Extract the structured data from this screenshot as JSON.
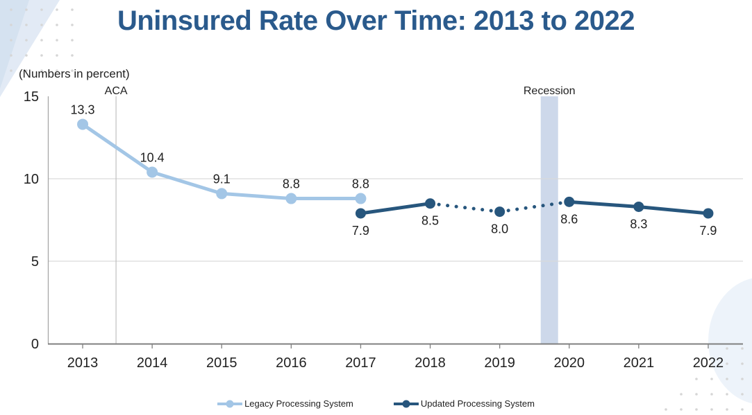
{
  "chart_data": {
    "type": "line",
    "title": "Uninsured Rate Over Time: 2013 to 2022",
    "units_note": "(Numbers in percent)",
    "categories": [
      "2013",
      "2014",
      "2015",
      "2016",
      "2017",
      "2018",
      "2019",
      "2020",
      "2021",
      "2022"
    ],
    "ylim": [
      0,
      15
    ],
    "yticks": [
      0,
      5,
      10,
      15
    ],
    "ytick_labels": [
      "0",
      "5",
      "10",
      "15"
    ],
    "grid_yticks": [
      5,
      10
    ],
    "legend_position": "bottom-center",
    "series": [
      {
        "key": "legacy",
        "name": "Legacy Processing System",
        "color": "#A3C6E6",
        "marker_radius": 8,
        "label_position": "above",
        "x": [
          2013,
          2014,
          2015,
          2016,
          2017
        ],
        "values": [
          13.3,
          10.4,
          9.1,
          8.8,
          8.8
        ],
        "labels": [
          "13.3",
          "10.4",
          "9.1",
          "8.8",
          "8.8"
        ],
        "segments": [
          {
            "style": "solid",
            "x": [
              2013,
              2014,
              2015,
              2016,
              2017
            ]
          }
        ]
      },
      {
        "key": "updated",
        "name": "Updated Processing System",
        "color": "#27567D",
        "marker_radius": 7.5,
        "label_position": "below",
        "x": [
          2017,
          2018,
          2019,
          2020,
          2021,
          2022
        ],
        "values": [
          7.9,
          8.5,
          8.0,
          8.6,
          8.3,
          7.9
        ],
        "labels": [
          "7.9",
          "8.5",
          "8.0",
          "8.6",
          "8.3",
          "7.9"
        ],
        "segments": [
          {
            "style": "solid",
            "x": [
              2017,
              2018
            ]
          },
          {
            "style": "dotted",
            "x": [
              2018,
              2019,
              2020
            ]
          },
          {
            "style": "solid",
            "x": [
              2020,
              2021,
              2022
            ]
          }
        ]
      }
    ],
    "annotations": {
      "aca": {
        "type": "vline",
        "label": "ACA",
        "x": 2013.48
      },
      "recession": {
        "type": "vband",
        "label": "Recession",
        "x_start": 2019.59,
        "x_end": 2019.84
      }
    }
  },
  "colors": {
    "title": "#2A5A8C",
    "grid": "#D9D9D9",
    "axis": "#7F7F7F",
    "y_axis_line": "#A6A6A6",
    "annotation_line": "#BFBFBF",
    "band": "#CDD8EA",
    "label_text": "#1F1F1F",
    "decor_wedge_outer": "#E2EAF5",
    "decor_wedge_inner": "#D5E2F0",
    "decor_dot": "#D6D6D6",
    "decor_blob": "#EDF3FA"
  }
}
